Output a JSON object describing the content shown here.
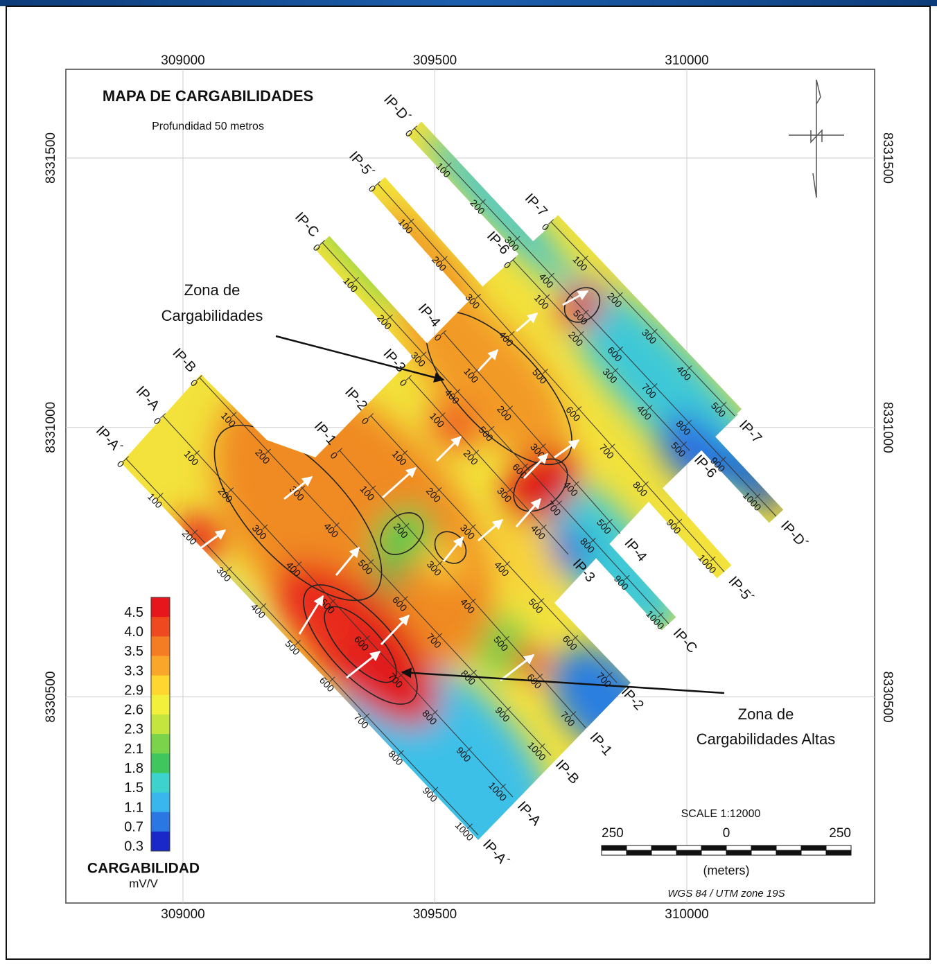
{
  "header": {
    "title": "MAPA DE CARGABILIDADES",
    "subtitle": "Profundidad 50 metros"
  },
  "axes": {
    "x_ticks": [
      309000,
      309500,
      310000
    ],
    "y_ticks": [
      8331500,
      8331000,
      8330500
    ]
  },
  "profiles": [
    {
      "name": "IP-A´"
    },
    {
      "name": "IP-A"
    },
    {
      "name": "IP-B"
    },
    {
      "name": "IP-1"
    },
    {
      "name": "IP-2"
    },
    {
      "name": "IP-3"
    },
    {
      "name": "IP-4"
    },
    {
      "name": "IP-C"
    },
    {
      "name": "IP-5´"
    },
    {
      "name": "IP-D´"
    },
    {
      "name": "IP-7"
    },
    {
      "name": "IP-6"
    }
  ],
  "stations": [
    0,
    100,
    200,
    300,
    400,
    500,
    600,
    700,
    800,
    900,
    1000
  ],
  "legend": {
    "title": "CARGABILIDAD",
    "unit": "mV/V",
    "entries": [
      {
        "value": 4.5,
        "color": "#e5161c"
      },
      {
        "value": 4,
        "label": "4.0",
        "color": "#ef4a1f"
      },
      {
        "value": 3.5,
        "color": "#f47c22"
      },
      {
        "value": 3.3,
        "color": "#f9a62a"
      },
      {
        "value": 2.9,
        "color": "#ffd530"
      },
      {
        "value": 2.6,
        "color": "#f3f03b"
      },
      {
        "value": 2.3,
        "color": "#c4e43e"
      },
      {
        "value": 2.1,
        "color": "#7ad34b"
      },
      {
        "value": 1.8,
        "color": "#3fc65c"
      },
      {
        "value": 1.5,
        "color": "#3dd3cc"
      },
      {
        "value": 1.1,
        "color": "#3ab6ef"
      },
      {
        "value": 0.7,
        "color": "#2a77e4"
      },
      {
        "value": 0.3,
        "color": "#1a28c9"
      }
    ]
  },
  "annotations": [
    {
      "lines": [
        "Zona de",
        "Cargabilidades"
      ]
    },
    {
      "lines": [
        "Zona de",
        "Cargabilidades Altas"
      ]
    }
  ],
  "scale_bar": {
    "title": "SCALE 1:12000",
    "ticks": [
      250,
      0,
      250
    ],
    "unit": "(meters)",
    "datum": "WGS 84 / UTM zone 19S"
  }
}
